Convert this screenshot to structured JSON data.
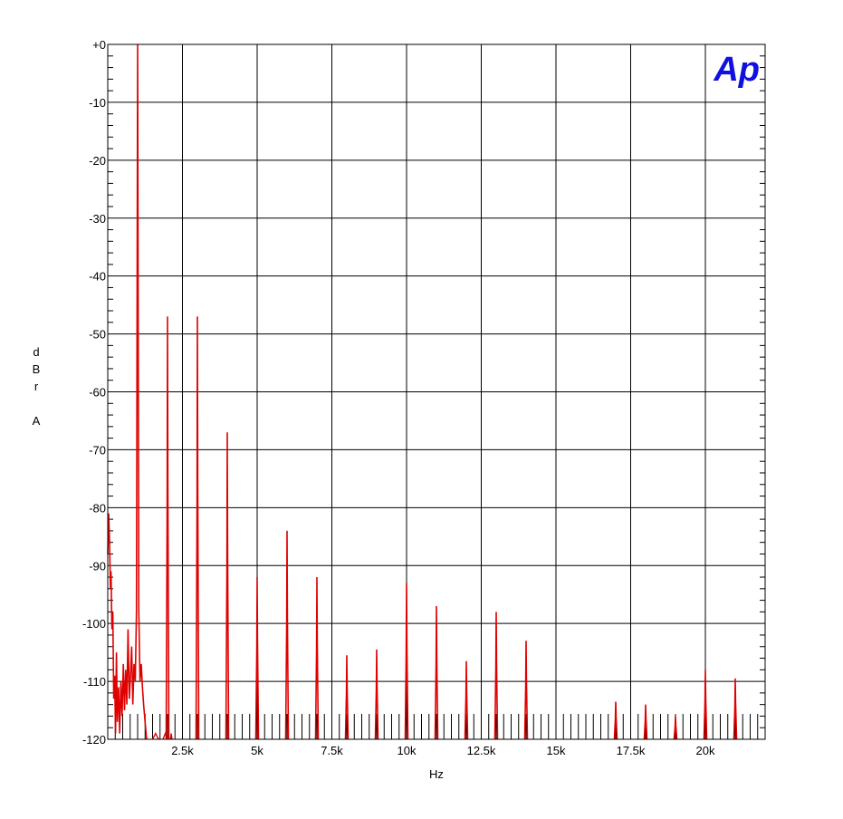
{
  "chart_data": {
    "type": "line",
    "title": "",
    "xlabel": "Hz",
    "ylabel": [
      "d",
      "B",
      "r",
      "",
      "A"
    ],
    "xlim": [
      0,
      22000
    ],
    "ylim": [
      -120,
      0
    ],
    "grid": true,
    "x_ticks": [
      2500,
      5000,
      7500,
      10000,
      12500,
      15000,
      17500,
      20000
    ],
    "x_tick_labels": [
      "2.5k",
      "5k",
      "7.5k",
      "10k",
      "12.5k",
      "15k",
      "17.5k",
      "20k"
    ],
    "y_ticks": [
      0,
      -10,
      -20,
      -30,
      -40,
      -50,
      -60,
      -70,
      -80,
      -90,
      -100,
      -110,
      -120
    ],
    "y_tick_labels": [
      "+0",
      "-10",
      "-20",
      "-30",
      "-40",
      "-50",
      "-60",
      "-70",
      "-80",
      "-90",
      "-100",
      "-110",
      "-120"
    ],
    "series": [
      {
        "color": "#e00000",
        "peaks": [
          {
            "x": 1000,
            "y": 0
          },
          {
            "x": 2000,
            "y": -47
          },
          {
            "x": 3000,
            "y": -47
          },
          {
            "x": 4000,
            "y": -67
          },
          {
            "x": 5000,
            "y": -92
          },
          {
            "x": 6000,
            "y": -84
          },
          {
            "x": 7000,
            "y": -92
          },
          {
            "x": 8000,
            "y": -105.5
          },
          {
            "x": 9000,
            "y": -104.5
          },
          {
            "x": 10000,
            "y": -93
          },
          {
            "x": 11000,
            "y": -97
          },
          {
            "x": 12000,
            "y": -106.5
          },
          {
            "x": 13000,
            "y": -98
          },
          {
            "x": 14000,
            "y": -103
          },
          {
            "x": 17000,
            "y": -113.5
          },
          {
            "x": 18000,
            "y": -114
          },
          {
            "x": 19000,
            "y": -116
          },
          {
            "x": 20000,
            "y": -108
          },
          {
            "x": 21000,
            "y": -109.5
          }
        ],
        "low_freq_noise": [
          {
            "x": 0,
            "y": -88
          },
          {
            "x": 30,
            "y": -81
          },
          {
            "x": 60,
            "y": -86
          },
          {
            "x": 90,
            "y": -94
          },
          {
            "x": 110,
            "y": -91
          },
          {
            "x": 140,
            "y": -101
          },
          {
            "x": 170,
            "y": -98
          },
          {
            "x": 200,
            "y": -113
          },
          {
            "x": 230,
            "y": -109
          },
          {
            "x": 260,
            "y": -119
          },
          {
            "x": 290,
            "y": -105
          },
          {
            "x": 320,
            "y": -117
          },
          {
            "x": 360,
            "y": -111
          },
          {
            "x": 400,
            "y": -119
          },
          {
            "x": 440,
            "y": -110
          },
          {
            "x": 480,
            "y": -116
          },
          {
            "x": 520,
            "y": -107
          },
          {
            "x": 560,
            "y": -115
          },
          {
            "x": 600,
            "y": -108
          },
          {
            "x": 640,
            "y": -114
          },
          {
            "x": 680,
            "y": -101
          },
          {
            "x": 720,
            "y": -113
          },
          {
            "x": 760,
            "y": -109
          },
          {
            "x": 800,
            "y": -104
          },
          {
            "x": 840,
            "y": -114
          },
          {
            "x": 880,
            "y": -107
          },
          {
            "x": 920,
            "y": -110
          },
          {
            "x": 960,
            "y": -98
          },
          {
            "x": 1000,
            "y": 0
          },
          {
            "x": 1040,
            "y": -98
          },
          {
            "x": 1080,
            "y": -110
          },
          {
            "x": 1120,
            "y": -107
          },
          {
            "x": 1160,
            "y": -111
          },
          {
            "x": 1200,
            "y": -114
          },
          {
            "x": 1300,
            "y": -120
          }
        ]
      }
    ]
  },
  "logo": {
    "text": "Ap",
    "color": "#1010e0"
  }
}
